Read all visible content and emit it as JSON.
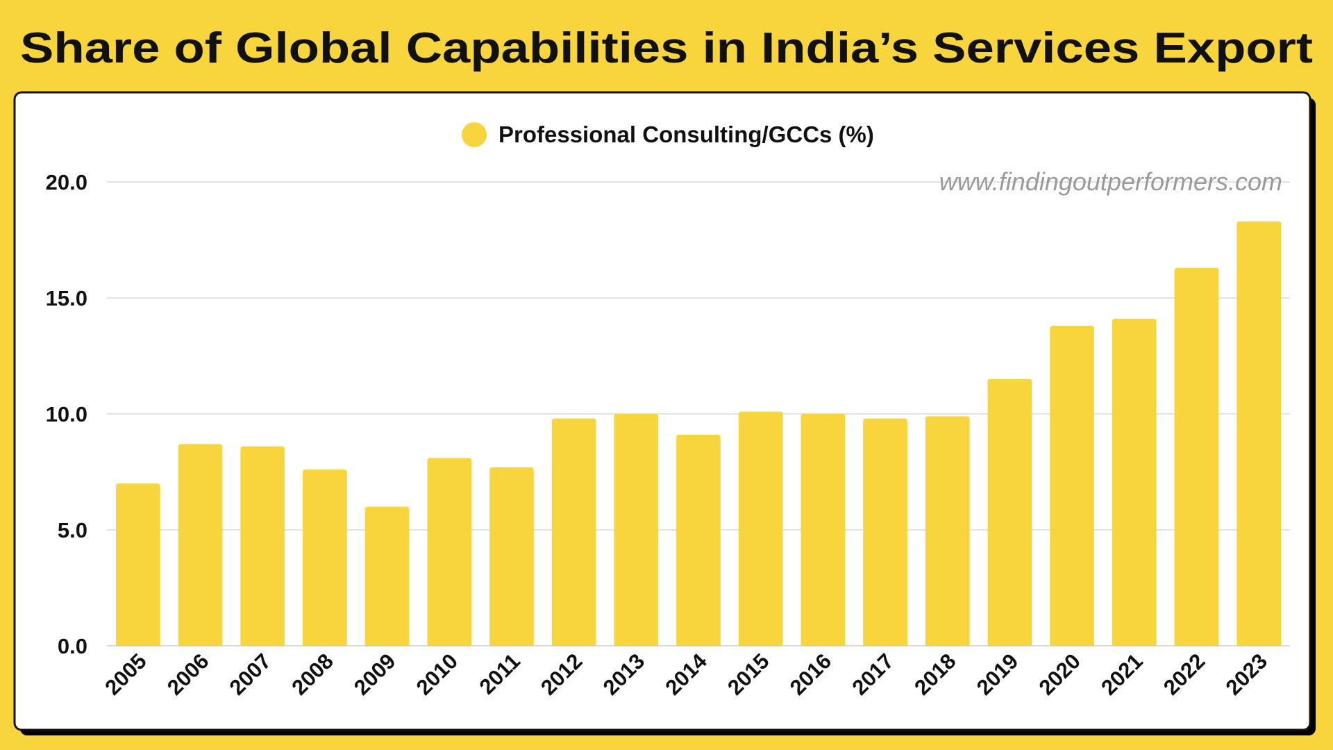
{
  "chart_data": {
    "type": "bar",
    "title": "Share of Global Capabilities in India’s Services Export",
    "xlabel": "",
    "ylabel": "",
    "legend": "top-center",
    "watermark": "www.findingoutperformers.com",
    "grid": true,
    "ylim": [
      0,
      20
    ],
    "yticks": [
      "0.0",
      "5.0",
      "10.0",
      "15.0",
      "20.0"
    ],
    "categories": [
      "2005",
      "2006",
      "2007",
      "2008",
      "2009",
      "2010",
      "2011",
      "2012",
      "2013",
      "2014",
      "2015",
      "2016",
      "2017",
      "2018",
      "2019",
      "2020",
      "2021",
      "2022",
      "2023"
    ],
    "series": [
      {
        "name": "Professional Consulting/GCCs (%)",
        "color": "#F8D53D",
        "values": [
          7.0,
          8.7,
          8.6,
          7.6,
          6.0,
          8.1,
          7.7,
          9.8,
          10.0,
          9.1,
          10.1,
          10.0,
          9.8,
          9.9,
          11.5,
          13.8,
          14.1,
          16.3,
          18.3
        ]
      }
    ]
  }
}
